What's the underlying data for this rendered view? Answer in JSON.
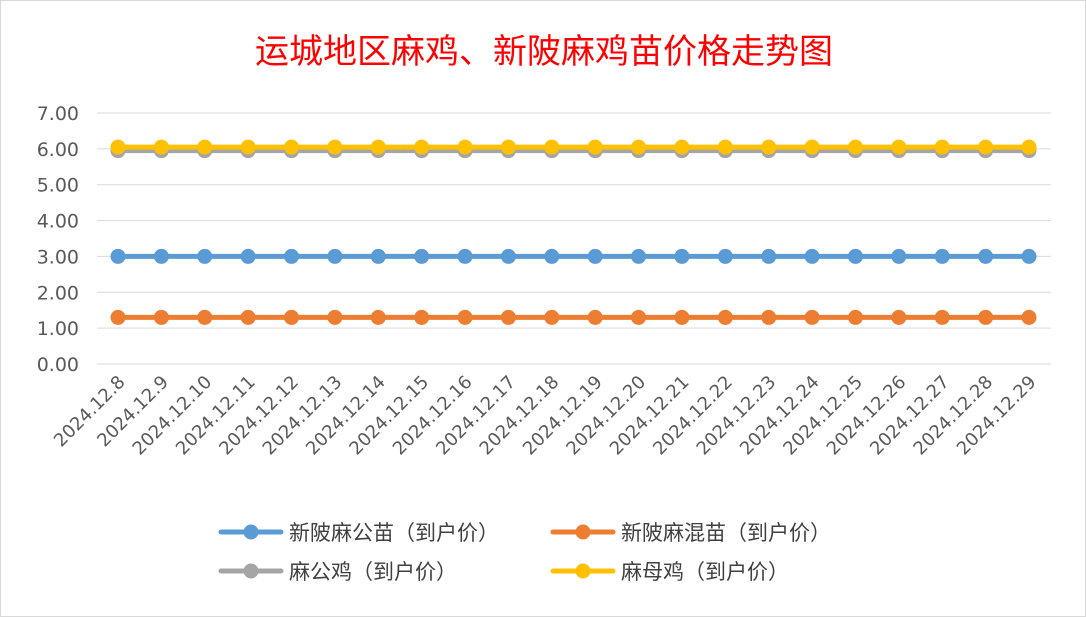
{
  "chart_data": {
    "type": "line",
    "title": "运城地区麻鸡、新陂麻鸡苗价格走势图",
    "xlabel": "",
    "ylabel": "",
    "ylim": [
      0,
      7
    ],
    "yticks": [
      "0.00",
      "1.00",
      "2.00",
      "3.00",
      "4.00",
      "5.00",
      "6.00",
      "7.00"
    ],
    "grid": true,
    "legend_position": "bottom",
    "x": [
      "2024.12.8",
      "2024.12.9",
      "2024.12.10",
      "2024.12.11",
      "2024.12.12",
      "2024.12.13",
      "2024.12.14",
      "2024.12.15",
      "2024.12.16",
      "2024.12.17",
      "2024.12.18",
      "2024.12.19",
      "2024.12.20",
      "2024.12.21",
      "2024.12.22",
      "2024.12.23",
      "2024.12.24",
      "2024.12.25",
      "2024.12.26",
      "2024.12.27",
      "2024.12.28",
      "2024.12.29"
    ],
    "series": [
      {
        "name": "新陂麻公苗（到户价）",
        "color": "#5b9bd5",
        "values": [
          3.0,
          3.0,
          3.0,
          3.0,
          3.0,
          3.0,
          3.0,
          3.0,
          3.0,
          3.0,
          3.0,
          3.0,
          3.0,
          3.0,
          3.0,
          3.0,
          3.0,
          3.0,
          3.0,
          3.0,
          3.0,
          3.0
        ]
      },
      {
        "name": "新陂麻混苗（到户价）",
        "color": "#ed7d31",
        "values": [
          1.3,
          1.3,
          1.3,
          1.3,
          1.3,
          1.3,
          1.3,
          1.3,
          1.3,
          1.3,
          1.3,
          1.3,
          1.3,
          1.3,
          1.3,
          1.3,
          1.3,
          1.3,
          1.3,
          1.3,
          1.3,
          1.3
        ]
      },
      {
        "name": "麻公鸡（到户价）",
        "color": "#a5a5a5",
        "values": [
          5.95,
          5.95,
          5.95,
          5.95,
          5.95,
          5.95,
          5.95,
          5.95,
          5.95,
          5.95,
          5.95,
          5.95,
          5.95,
          5.95,
          5.95,
          5.95,
          5.95,
          5.95,
          5.95,
          5.95,
          5.95,
          5.95
        ]
      },
      {
        "name": "麻母鸡（到户价）",
        "color": "#ffc000",
        "values": [
          6.05,
          6.05,
          6.05,
          6.05,
          6.05,
          6.05,
          6.05,
          6.05,
          6.05,
          6.05,
          6.05,
          6.05,
          6.05,
          6.05,
          6.05,
          6.05,
          6.05,
          6.05,
          6.05,
          6.05,
          6.05,
          6.05
        ]
      }
    ]
  }
}
